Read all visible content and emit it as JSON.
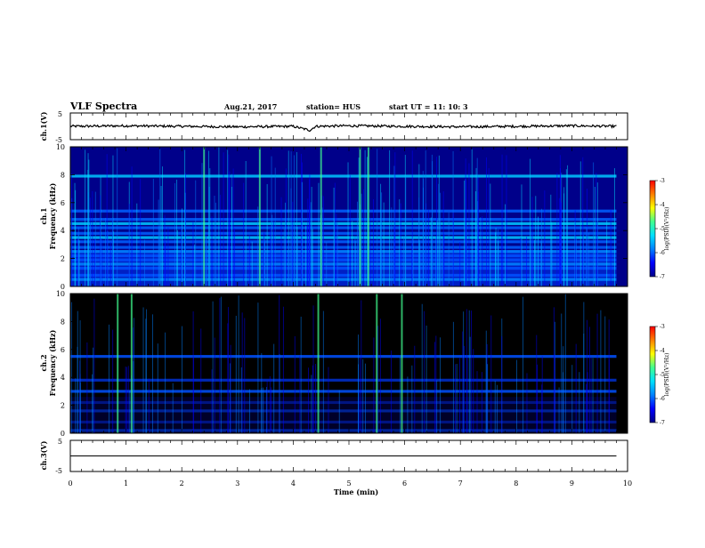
{
  "header": {
    "title": "VLF Spectra",
    "date": "Aug.21, 2017",
    "station": "station= HUS",
    "start": "start  UT =   11: 10: 3"
  },
  "colors": {
    "colormap": [
      "#000000",
      "#000088",
      "#0000ff",
      "#0080ff",
      "#00e0ff",
      "#40ff90",
      "#ffff00",
      "#ff8000",
      "#ff0000",
      "#ffffff"
    ]
  },
  "chart_data": [
    {
      "type": "line",
      "name": "ch.1 waveform",
      "ylabel": "ch.1(V)",
      "ylim": [
        -5,
        5
      ],
      "yticks": [
        "5",
        "-5"
      ],
      "x": [
        0,
        1,
        2,
        3,
        4,
        4.3,
        4.4,
        5,
        6,
        7,
        8,
        9,
        9.8
      ],
      "y": [
        0,
        0.2,
        0,
        -0.2,
        0,
        -1.5,
        0,
        0.2,
        0,
        -0.2,
        0,
        0.2,
        0
      ]
    },
    {
      "type": "heatmap",
      "name": "ch.1 spectrogram",
      "ylabel": "ch.1\nFrequency (kHz)",
      "ylim": [
        0,
        10
      ],
      "xlim": [
        0,
        9.8
      ],
      "yticks": [
        "0",
        "2",
        "4",
        "6",
        "8",
        "10"
      ],
      "band_centers_khz": [
        0.5,
        0.8,
        1.3,
        1.6,
        1.9,
        2.2,
        2.5,
        2.8,
        3.2,
        3.5,
        3.8,
        4.2,
        4.5,
        4.8,
        5.4,
        7.9
      ],
      "bright_times_min": [
        2.4,
        3.4,
        4.5,
        5.2,
        5.35
      ],
      "colorbar": {
        "label": "log(PSD)(V²/Hz)",
        "ticks": [
          "-3",
          "-4",
          "-5",
          "-6",
          "-7"
        ],
        "range": [
          -7,
          -3
        ]
      }
    },
    {
      "type": "heatmap",
      "name": "ch.2 spectrogram",
      "ylabel": "ch.2\nFrequency (kHz)",
      "ylim": [
        0,
        10
      ],
      "xlim": [
        0,
        9.8
      ],
      "yticks": [
        "0",
        "2",
        "4",
        "6",
        "8",
        "10"
      ],
      "band_centers_khz": [
        0.2,
        0.8,
        1.6,
        2.2,
        3.0,
        3.8,
        5.5
      ],
      "bright_times_min": [
        0.85,
        1.1,
        4.45,
        5.5,
        5.95
      ],
      "colorbar": {
        "label": "log(PSD)(V²/Hz)",
        "ticks": [
          "-3",
          "-4",
          "-5",
          "-6",
          "-7"
        ],
        "range": [
          -7,
          -3
        ]
      }
    },
    {
      "type": "line",
      "name": "ch.3 waveform",
      "ylabel": "ch.3(V)",
      "ylim": [
        -5,
        5
      ],
      "yticks": [
        "5",
        "-5"
      ],
      "x": [
        0,
        9.8
      ],
      "y": [
        0,
        0
      ]
    }
  ],
  "x_axis": {
    "label": "Time  (min)",
    "range": [
      0,
      10
    ],
    "ticks": [
      "0",
      "1",
      "2",
      "3",
      "4",
      "5",
      "6",
      "7",
      "8",
      "9",
      "10"
    ]
  }
}
